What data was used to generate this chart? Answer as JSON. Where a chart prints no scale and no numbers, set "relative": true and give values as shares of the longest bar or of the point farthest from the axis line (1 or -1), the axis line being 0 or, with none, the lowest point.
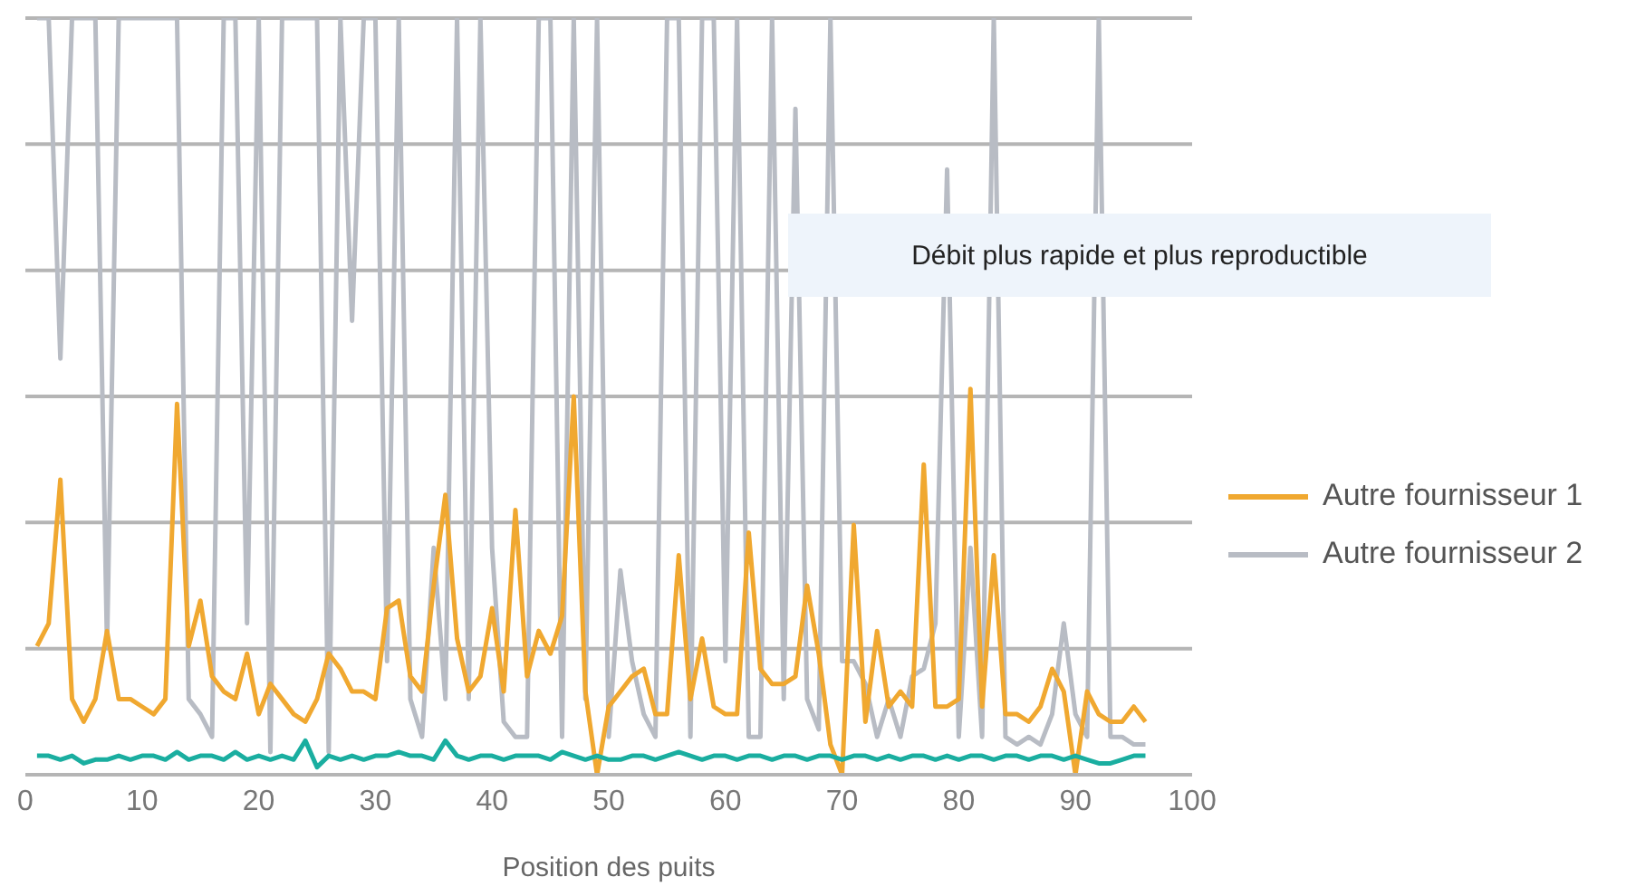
{
  "chart_data": {
    "type": "line",
    "xlabel": "Position des puits",
    "relative": true,
    "xlim": [
      0,
      100
    ],
    "xticks": [
      0,
      10,
      20,
      30,
      40,
      50,
      60,
      70,
      80,
      90,
      100
    ],
    "grid": "y",
    "legend": "right",
    "marker": "none",
    "line_style": "solid",
    "annotations": [
      "Débit plus rapide et plus reproductible"
    ],
    "x": [
      1,
      2,
      3,
      4,
      5,
      6,
      7,
      8,
      9,
      10,
      11,
      12,
      13,
      14,
      15,
      16,
      17,
      18,
      19,
      20,
      21,
      22,
      23,
      24,
      25,
      26,
      27,
      28,
      29,
      30,
      31,
      32,
      33,
      34,
      35,
      36,
      37,
      38,
      39,
      40,
      41,
      42,
      43,
      44,
      45,
      46,
      47,
      48,
      49,
      50,
      51,
      52,
      53,
      54,
      55,
      56,
      57,
      58,
      59,
      60,
      61,
      62,
      63,
      64,
      65,
      66,
      67,
      68,
      69,
      70,
      71,
      72,
      73,
      74,
      75,
      76,
      77,
      78,
      79,
      80,
      81,
      82,
      83,
      84,
      85,
      86,
      87,
      88,
      89,
      90,
      91,
      92,
      93,
      94,
      95,
      96
    ],
    "series": [
      {
        "color": "#1aaea0",
        "values": [
          0.025,
          0.025,
          0.02,
          0.025,
          0.015,
          0.02,
          0.02,
          0.025,
          0.02,
          0.025,
          0.025,
          0.02,
          0.03,
          0.02,
          0.025,
          0.025,
          0.02,
          0.03,
          0.02,
          0.025,
          0.02,
          0.025,
          0.02,
          0.045,
          0.01,
          0.025,
          0.02,
          0.025,
          0.02,
          0.025,
          0.025,
          0.03,
          0.025,
          0.025,
          0.02,
          0.045,
          0.025,
          0.02,
          0.025,
          0.025,
          0.02,
          0.025,
          0.025,
          0.025,
          0.02,
          0.03,
          0.025,
          0.02,
          0.025,
          0.02,
          0.02,
          0.025,
          0.025,
          0.02,
          0.025,
          0.03,
          0.025,
          0.02,
          0.025,
          0.025,
          0.02,
          0.025,
          0.025,
          0.02,
          0.025,
          0.025,
          0.02,
          0.025,
          0.025,
          0.02,
          0.025,
          0.025,
          0.02,
          0.025,
          0.02,
          0.025,
          0.025,
          0.02,
          0.025,
          0.02,
          0.025,
          0.025,
          0.02,
          0.025,
          0.025,
          0.02,
          0.025,
          0.025,
          0.02,
          0.025,
          0.02,
          0.015,
          0.015,
          0.02,
          0.025,
          0.025
        ]
      },
      {
        "name": "Autre fournisseur 1",
        "color": "#f0a830",
        "values": [
          0.17,
          0.2,
          0.39,
          0.1,
          0.07,
          0.1,
          0.19,
          0.1,
          0.1,
          0.09,
          0.08,
          0.1,
          0.49,
          0.17,
          0.23,
          0.13,
          0.11,
          0.1,
          0.16,
          0.08,
          0.12,
          0.1,
          0.08,
          0.07,
          0.1,
          0.16,
          0.14,
          0.11,
          0.11,
          0.1,
          0.22,
          0.23,
          0.13,
          0.11,
          0.25,
          0.37,
          0.18,
          0.11,
          0.13,
          0.22,
          0.11,
          0.35,
          0.13,
          0.19,
          0.16,
          0.21,
          0.5,
          0.11,
          0,
          0.09,
          0.11,
          0.13,
          0.14,
          0.08,
          0.08,
          0.29,
          0.1,
          0.18,
          0.09,
          0.08,
          0.08,
          0.32,
          0.14,
          0.12,
          0.12,
          0.13,
          0.25,
          0.16,
          0.04,
          0,
          0.33,
          0.07,
          0.19,
          0.09,
          0.11,
          0.09,
          0.41,
          0.09,
          0.09,
          0.1,
          0.51,
          0.09,
          0.29,
          0.08,
          0.08,
          0.07,
          0.09,
          0.14,
          0.11,
          0,
          0.11,
          0.08,
          0.07,
          0.07,
          0.09,
          0.07
        ]
      },
      {
        "name": "Autre fournisseur 2",
        "color": "#b8bcc4",
        "values": [
          1,
          1,
          0.55,
          1,
          1,
          1,
          0.17,
          1,
          1,
          1,
          1,
          1,
          1,
          0.1,
          0.08,
          0.05,
          1,
          1,
          0.2,
          1,
          0.03,
          1,
          1,
          1,
          1,
          0.03,
          1,
          0.6,
          1,
          1,
          0.15,
          1,
          0.1,
          0.05,
          0.3,
          0.1,
          1,
          0.1,
          1,
          0.3,
          0.07,
          0.05,
          0.05,
          1,
          1,
          0.05,
          1,
          0.1,
          1,
          0.05,
          0.27,
          0.15,
          0.08,
          0.05,
          1,
          1,
          0.05,
          1,
          1,
          0.15,
          1,
          0.05,
          0.05,
          1,
          0.1,
          0.88,
          0.1,
          0.06,
          1,
          0.15,
          0.15,
          0.12,
          0.05,
          0.1,
          0.05,
          0.13,
          0.14,
          0.2,
          0.8,
          0.05,
          0.3,
          0.05,
          1,
          0.05,
          0.04,
          0.05,
          0.04,
          0.08,
          0.2,
          0.08,
          0.05,
          1,
          0.05,
          0.05,
          0.04,
          0.04
        ]
      }
    ]
  }
}
